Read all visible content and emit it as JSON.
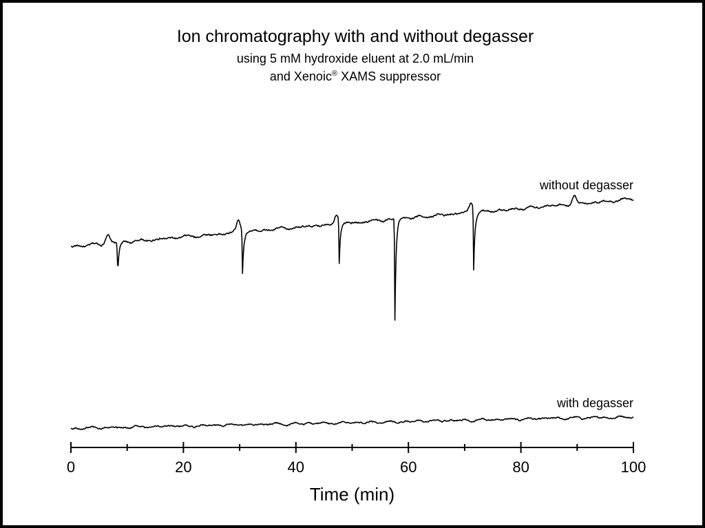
{
  "chart_data": {
    "type": "line",
    "title": "Ion chromatography with and without degasser",
    "subtitle_line1": "using 5 mM hydroxide eluent at 2.0 mL/min",
    "subtitle_line2_before": "and Xenoic",
    "subtitle_line2_sup": "®",
    "subtitle_line2_after": " XAMS suppressor",
    "xlabel": "Time (min)",
    "ylabel": "",
    "xlim": [
      0,
      100
    ],
    "x_ticks": [
      0,
      20,
      40,
      60,
      80,
      100
    ],
    "x_minor_ticks": [
      10,
      30,
      50,
      70,
      90
    ],
    "y_axis_visible": false,
    "grid": false,
    "ylim": [
      -0.45,
      1.35
    ],
    "series": [
      {
        "name": "without degasser",
        "baseline": {
          "start": 0.0,
          "end": 0.25
        },
        "noise_amplitude": 0.012,
        "peaks": [
          {
            "time": 8.3,
            "height": -0.19
          },
          {
            "time": 30.5,
            "height": -0.22
          },
          {
            "time": 47.7,
            "height": -0.22
          },
          {
            "time": 57.6,
            "height": -0.53
          },
          {
            "time": 71.6,
            "height": -0.32
          }
        ],
        "bumps": [
          {
            "time": 6.5,
            "height": 0.05
          },
          {
            "time": 29.8,
            "height": 0.07
          },
          {
            "time": 47.2,
            "height": 0.06
          },
          {
            "time": 71.2,
            "height": 0.05
          },
          {
            "time": 89.5,
            "height": 0.04
          }
        ]
      },
      {
        "name": "with degasser",
        "baseline": {
          "start": 0.0,
          "end": 0.06
        },
        "noise_amplitude": 0.01,
        "peaks": [],
        "bumps": []
      }
    ]
  }
}
